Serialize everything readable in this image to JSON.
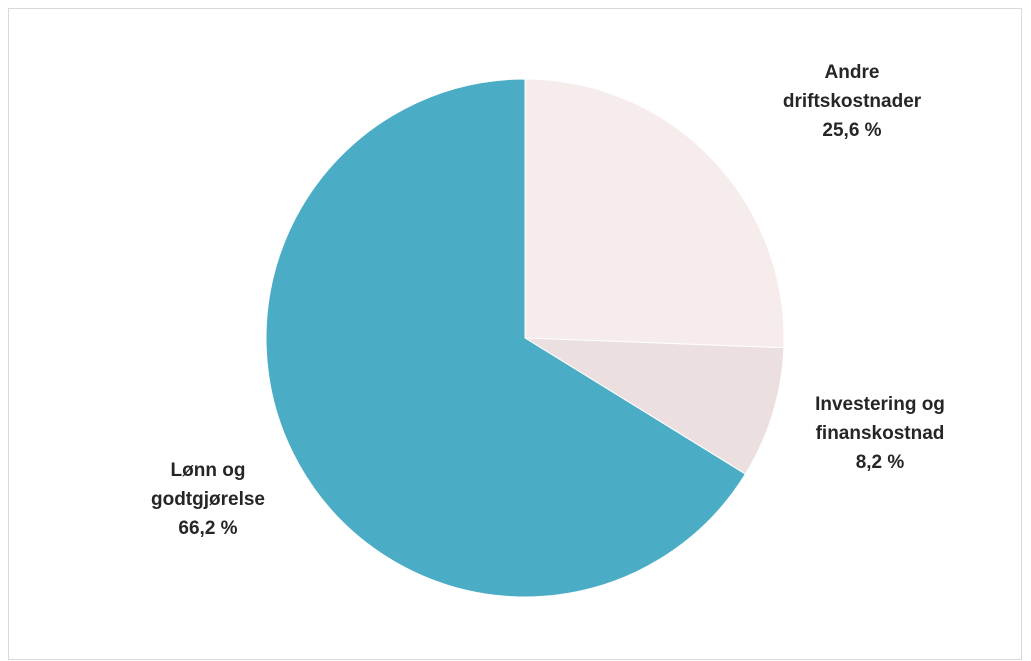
{
  "chart_data": {
    "type": "pie",
    "title": "",
    "start_angle_deg": 0,
    "direction": "clockwise",
    "slices": [
      {
        "name": "Andre driftskostnader",
        "label_lines": [
          "Andre",
          "driftskostnader",
          "25,6 %"
        ],
        "value": 25.6,
        "color": "#f6ecec"
      },
      {
        "name": "Investering og finanskostnad",
        "label_lines": [
          "Investering og",
          "finanskostnad",
          "8,2 %"
        ],
        "value": 8.2,
        "color": "#ebdfdf"
      },
      {
        "name": "Lønn og godtgjørelse",
        "label_lines": [
          "Lønn og",
          "godtgjørelse",
          "66,2 %"
        ],
        "value": 66.2,
        "color": "#4bacc6"
      }
    ],
    "legend": "none",
    "data_labels": "outside"
  }
}
